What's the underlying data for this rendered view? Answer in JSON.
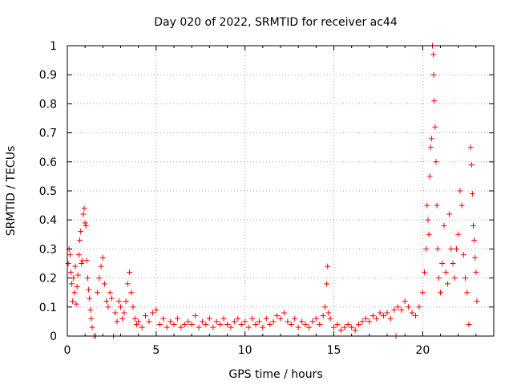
{
  "chart_data": {
    "type": "scatter",
    "title": "Day 020 of 2022, SRMTID for receiver ac44",
    "xlabel": "GPS time / hours",
    "ylabel": "SRMTID / TECUs",
    "xlim": [
      0,
      24
    ],
    "ylim": [
      0,
      1
    ],
    "xticks": [
      0,
      5,
      10,
      15,
      20
    ],
    "yticks": [
      0,
      0.1,
      0.2,
      0.3,
      0.4,
      0.5,
      0.6,
      0.7,
      0.8,
      0.9,
      1
    ],
    "xtick_labels": [
      "0",
      "5",
      "10",
      "15",
      "20"
    ],
    "ytick_labels": [
      "0",
      "0.1",
      "0.2",
      "0.3",
      "0.4",
      "0.5",
      "0.6",
      "0.7",
      "0.8",
      "0.9",
      "1"
    ],
    "grid": true,
    "marker": "+",
    "color": "#ff0000",
    "series": [
      {
        "name": "SRMTID",
        "points": [
          [
            0.05,
            0.25
          ],
          [
            0.1,
            0.3
          ],
          [
            0.15,
            0.28
          ],
          [
            0.2,
            0.22
          ],
          [
            0.25,
            0.18
          ],
          [
            0.3,
            0.12
          ],
          [
            0.35,
            0.2
          ],
          [
            0.4,
            0.15
          ],
          [
            0.45,
            0.24
          ],
          [
            0.5,
            0.11
          ],
          [
            0.55,
            0.17
          ],
          [
            0.6,
            0.21
          ],
          [
            0.65,
            0.28
          ],
          [
            0.7,
            0.33
          ],
          [
            0.75,
            0.36
          ],
          [
            0.8,
            0.25
          ],
          [
            0.85,
            0.26
          ],
          [
            0.9,
            0.42
          ],
          [
            0.95,
            0.44
          ],
          [
            1.0,
            0.39
          ],
          [
            1.05,
            0.38
          ],
          [
            1.1,
            0.26
          ],
          [
            1.15,
            0.2
          ],
          [
            1.2,
            0.16
          ],
          [
            1.25,
            0.13
          ],
          [
            1.3,
            0.09
          ],
          [
            1.35,
            0.06
          ],
          [
            1.4,
            0.03
          ],
          [
            1.5,
            0.0
          ],
          [
            1.6,
            0.0
          ],
          [
            1.7,
            0.15
          ],
          [
            1.8,
            0.2
          ],
          [
            1.9,
            0.24
          ],
          [
            2.0,
            0.27
          ],
          [
            2.1,
            0.18
          ],
          [
            2.2,
            0.12
          ],
          [
            2.3,
            0.1
          ],
          [
            2.4,
            0.15
          ],
          [
            2.5,
            0.13
          ],
          [
            2.6,
            0.0
          ],
          [
            2.7,
            0.08
          ],
          [
            2.8,
            0.05
          ],
          [
            2.9,
            0.12
          ],
          [
            3.0,
            0.1
          ],
          [
            3.1,
            0.06
          ],
          [
            3.2,
            0.08
          ],
          [
            3.3,
            0.12
          ],
          [
            3.4,
            0.18
          ],
          [
            3.5,
            0.22
          ],
          [
            3.6,
            0.15
          ],
          [
            3.7,
            0.1
          ],
          [
            3.8,
            0.06
          ],
          [
            3.9,
            0.04
          ],
          [
            4.0,
            0.05
          ],
          [
            4.2,
            0.03
          ],
          [
            4.4,
            0.07
          ],
          [
            4.6,
            0.05
          ],
          [
            4.8,
            0.08
          ],
          [
            5.0,
            0.09
          ],
          [
            5.2,
            0.04
          ],
          [
            5.4,
            0.06
          ],
          [
            5.6,
            0.03
          ],
          [
            5.8,
            0.05
          ],
          [
            6.0,
            0.04
          ],
          [
            6.2,
            0.06
          ],
          [
            6.4,
            0.03
          ],
          [
            6.6,
            0.04
          ],
          [
            6.8,
            0.05
          ],
          [
            7.0,
            0.04
          ],
          [
            7.2,
            0.07
          ],
          [
            7.4,
            0.03
          ],
          [
            7.6,
            0.05
          ],
          [
            7.8,
            0.04
          ],
          [
            8.0,
            0.06
          ],
          [
            8.2,
            0.03
          ],
          [
            8.4,
            0.05
          ],
          [
            8.6,
            0.04
          ],
          [
            8.8,
            0.06
          ],
          [
            9.0,
            0.04
          ],
          [
            9.2,
            0.03
          ],
          [
            9.4,
            0.05
          ],
          [
            9.6,
            0.06
          ],
          [
            9.8,
            0.04
          ],
          [
            10.0,
            0.05
          ],
          [
            10.2,
            0.03
          ],
          [
            10.4,
            0.06
          ],
          [
            10.6,
            0.04
          ],
          [
            10.8,
            0.05
          ],
          [
            11.0,
            0.03
          ],
          [
            11.2,
            0.06
          ],
          [
            11.4,
            0.04
          ],
          [
            11.6,
            0.05
          ],
          [
            11.8,
            0.07
          ],
          [
            12.0,
            0.06
          ],
          [
            12.2,
            0.08
          ],
          [
            12.4,
            0.05
          ],
          [
            12.6,
            0.04
          ],
          [
            12.8,
            0.06
          ],
          [
            13.0,
            0.03
          ],
          [
            13.2,
            0.05
          ],
          [
            13.4,
            0.04
          ],
          [
            13.6,
            0.03
          ],
          [
            13.8,
            0.05
          ],
          [
            14.0,
            0.06
          ],
          [
            14.2,
            0.04
          ],
          [
            14.4,
            0.07
          ],
          [
            14.5,
            0.1
          ],
          [
            14.6,
            0.18
          ],
          [
            14.65,
            0.24
          ],
          [
            14.7,
            0.08
          ],
          [
            14.8,
            0.06
          ],
          [
            15.0,
            0.03
          ],
          [
            15.2,
            0.04
          ],
          [
            15.4,
            0.02
          ],
          [
            15.6,
            0.03
          ],
          [
            15.8,
            0.04
          ],
          [
            16.0,
            0.03
          ],
          [
            16.2,
            0.02
          ],
          [
            16.4,
            0.04
          ],
          [
            16.6,
            0.05
          ],
          [
            16.8,
            0.06
          ],
          [
            17.0,
            0.05
          ],
          [
            17.2,
            0.07
          ],
          [
            17.4,
            0.06
          ],
          [
            17.6,
            0.08
          ],
          [
            17.8,
            0.07
          ],
          [
            18.0,
            0.08
          ],
          [
            18.2,
            0.06
          ],
          [
            18.4,
            0.09
          ],
          [
            18.5,
            0.0
          ],
          [
            18.6,
            0.1
          ],
          [
            18.8,
            0.09
          ],
          [
            19.0,
            0.12
          ],
          [
            19.2,
            0.1
          ],
          [
            19.4,
            0.08
          ],
          [
            19.6,
            0.07
          ],
          [
            19.8,
            0.1
          ],
          [
            20.0,
            0.15
          ],
          [
            20.1,
            0.22
          ],
          [
            20.2,
            0.3
          ],
          [
            20.25,
            0.45
          ],
          [
            20.3,
            0.4
          ],
          [
            20.35,
            0.35
          ],
          [
            20.4,
            0.55
          ],
          [
            20.45,
            0.65
          ],
          [
            20.5,
            0.68
          ],
          [
            20.55,
            1.0
          ],
          [
            20.6,
            0.97
          ],
          [
            20.62,
            0.9
          ],
          [
            20.65,
            0.81
          ],
          [
            20.7,
            0.72
          ],
          [
            20.75,
            0.6
          ],
          [
            20.8,
            0.45
          ],
          [
            20.85,
            0.3
          ],
          [
            20.9,
            0.2
          ],
          [
            21.0,
            0.15
          ],
          [
            21.1,
            0.25
          ],
          [
            21.2,
            0.38
          ],
          [
            21.3,
            0.22
          ],
          [
            21.4,
            0.18
          ],
          [
            21.5,
            0.42
          ],
          [
            21.6,
            0.3
          ],
          [
            21.7,
            0.25
          ],
          [
            21.8,
            0.2
          ],
          [
            21.9,
            0.3
          ],
          [
            22.0,
            0.35
          ],
          [
            22.1,
            0.5
          ],
          [
            22.2,
            0.45
          ],
          [
            22.3,
            0.28
          ],
          [
            22.4,
            0.2
          ],
          [
            22.5,
            0.15
          ],
          [
            22.6,
            0.04
          ],
          [
            22.7,
            0.65
          ],
          [
            22.75,
            0.59
          ],
          [
            22.8,
            0.49
          ],
          [
            22.85,
            0.38
          ],
          [
            22.9,
            0.33
          ],
          [
            22.95,
            0.27
          ],
          [
            23.0,
            0.22
          ],
          [
            23.05,
            0.12
          ]
        ]
      }
    ]
  }
}
